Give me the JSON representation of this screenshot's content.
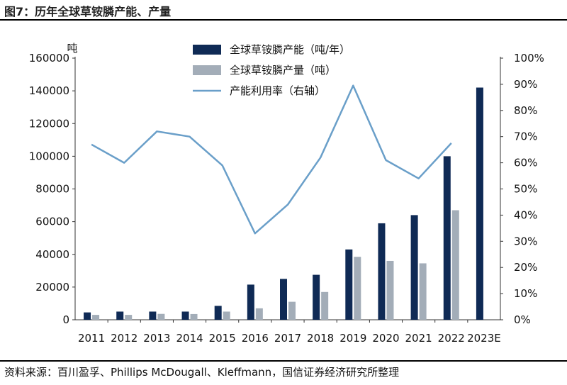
{
  "title": "图7：历年全球草铵膦产能、产量",
  "source": "资料来源：百川盈孚、Phillips McDougall、Kleffmann，国信证券经济研究所整理",
  "chart_data": {
    "type": "bar",
    "categories": [
      "2011",
      "2012",
      "2013",
      "2014",
      "2015",
      "2016",
      "2017",
      "2018",
      "2019",
      "2020",
      "2021",
      "2022",
      "2023E"
    ],
    "y_unit_label": "吨",
    "ylim": [
      0,
      160000
    ],
    "y_ticks": [
      "0",
      "20000",
      "40000",
      "60000",
      "80000",
      "100000",
      "120000",
      "140000",
      "160000"
    ],
    "y2lim": [
      0,
      100
    ],
    "y2_ticks": [
      "0%",
      "10%",
      "20%",
      "30%",
      "40%",
      "50%",
      "60%",
      "70%",
      "80%",
      "90%",
      "100%"
    ],
    "series": [
      {
        "name": "全球草铵膦产能（吨/年）",
        "type": "bar",
        "color": "#0f2a55",
        "values": [
          4500,
          5000,
          5000,
          5000,
          8500,
          21500,
          25000,
          27500,
          43000,
          59000,
          64000,
          100000,
          142000
        ]
      },
      {
        "name": "全球草铵膦产量（吨）",
        "type": "bar",
        "color": "#a3adb8",
        "values": [
          3000,
          3000,
          3600,
          3500,
          5000,
          7000,
          11000,
          17000,
          38500,
          36000,
          34500,
          67000,
          null
        ]
      },
      {
        "name": "产能利用率（右轴）",
        "type": "line",
        "axis": "right",
        "color": "#6a9fc9",
        "values": [
          67,
          60,
          72,
          70,
          59,
          33,
          44,
          62,
          89.5,
          61,
          54,
          67.5,
          null
        ]
      }
    ]
  }
}
